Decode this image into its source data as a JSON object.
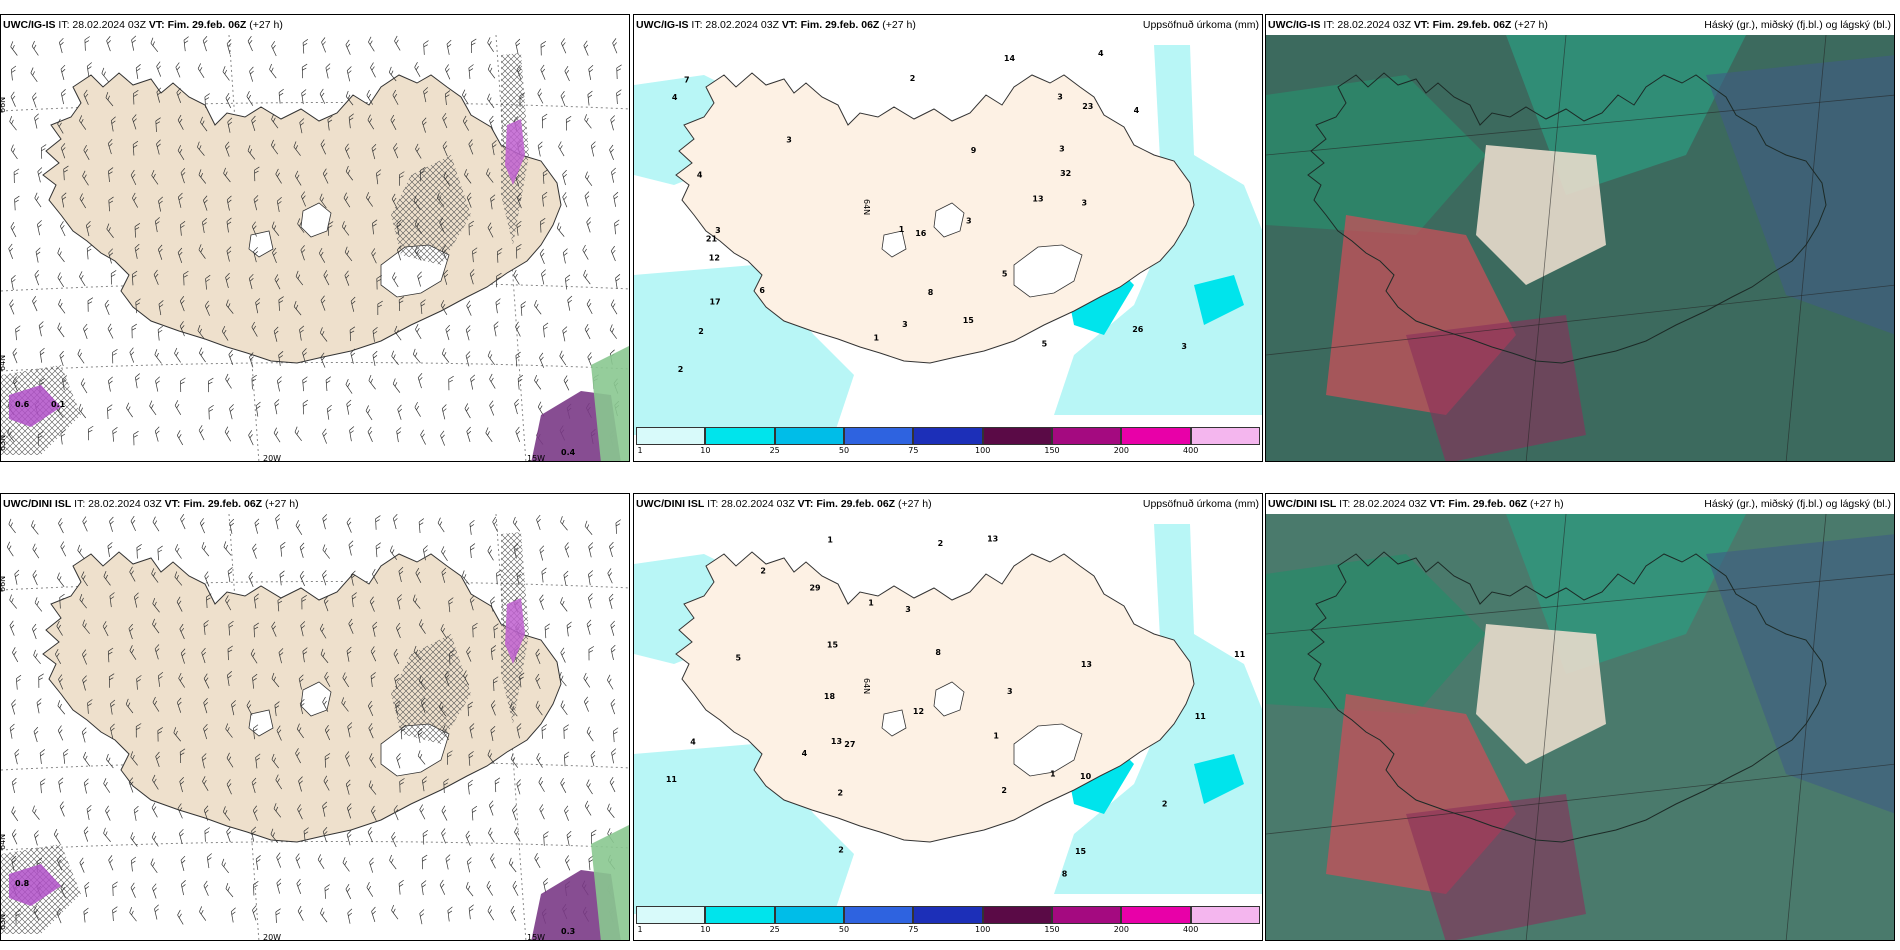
{
  "colorbar": {
    "ticks": [
      "1",
      "10",
      "25",
      "50",
      "75",
      "100",
      "150",
      "200",
      "400"
    ],
    "colors": [
      "#d8fafa",
      "#00e4ec",
      "#00bde8",
      "#2e63e0",
      "#1c2fb8",
      "#5a0a46",
      "#a40a80",
      "#e800a8",
      "#f4b6ee"
    ]
  },
  "panels": [
    {
      "id": "top-left",
      "header_model": "UWC/IG-IS",
      "header_it": "IT: 28.02.2024 03Z",
      "header_vt": "VT: Fim. 29.feb. 06Z",
      "header_step": "(+27 h)",
      "header_right": "",
      "type": "wind",
      "lon_labels": [
        "20W",
        "15W"
      ],
      "lat_labels": [
        "66N",
        "64N",
        "63N"
      ],
      "value_labels": [
        "0.4",
        "0.6",
        "0.1"
      ]
    },
    {
      "id": "top-middle",
      "header_model": "UWC/IG-IS",
      "header_it": "IT: 28.02.2024 03Z",
      "header_vt": "VT: Fim. 29.feb. 06Z",
      "header_step": "(+27 h)",
      "header_right": "Uppsöfnuð úrkoma (mm)",
      "type": "precip",
      "lat_labels": [
        "66N",
        "64N"
      ],
      "values": [
        "4",
        "3",
        "3",
        "3",
        "3",
        "3",
        "2",
        "1",
        "2",
        "6",
        "12",
        "17",
        "3",
        "4",
        "3",
        "21",
        "15",
        "16",
        "9",
        "3",
        "2",
        "4",
        "8",
        "1",
        "7",
        "5",
        "23",
        "26",
        "14",
        "32",
        "5",
        "4",
        "13"
      ]
    },
    {
      "id": "top-right",
      "header_model": "UWC/IG-IS",
      "header_it": "IT: 28.02.2024 03Z",
      "header_vt": "VT: Fim. 29.feb. 06Z",
      "header_step": "(+27 h)",
      "header_right": "Háský (gr.), miðský (fj.bl.) og lágský (bl.)",
      "type": "cloud"
    },
    {
      "id": "bottom-left",
      "header_model": "UWC/DINI ISL",
      "header_it": "IT: 28.02.2024 03Z",
      "header_vt": "VT: Fim. 29.feb. 06Z",
      "header_step": "(+27 h)",
      "header_right": "",
      "type": "wind",
      "lon_labels": [
        "20W",
        "15W"
      ],
      "lat_labels": [
        "66N",
        "64N",
        "63N"
      ],
      "value_labels": [
        "0.3",
        "0.8"
      ]
    },
    {
      "id": "bottom-middle",
      "header_model": "UWC/DINI ISL",
      "header_it": "IT: 28.02.2024 03Z",
      "header_vt": "VT: Fim. 29.feb. 06Z",
      "header_step": "(+27 h)",
      "header_right": "Uppsöfnuð úrkoma (mm)",
      "type": "precip",
      "lat_labels": [
        "66N",
        "64N"
      ],
      "values": [
        "13",
        "4",
        "2",
        "2",
        "2",
        "2",
        "3",
        "1",
        "1",
        "11",
        "11",
        "1",
        "18",
        "29",
        "12",
        "15",
        "13",
        "15",
        "13",
        "10",
        "8",
        "2",
        "3",
        "2",
        "11",
        "8",
        "5",
        "4",
        "27",
        "1"
      ]
    },
    {
      "id": "bottom-right",
      "header_model": "UWC/DINI ISL",
      "header_it": "IT: 28.02.2024 03Z",
      "header_vt": "VT: Fim. 29.feb. 06Z",
      "header_step": "(+27 h)",
      "header_right": "Háský (gr.), miðský (fj.bl.) og lágský (bl.)",
      "type": "cloud"
    }
  ]
}
